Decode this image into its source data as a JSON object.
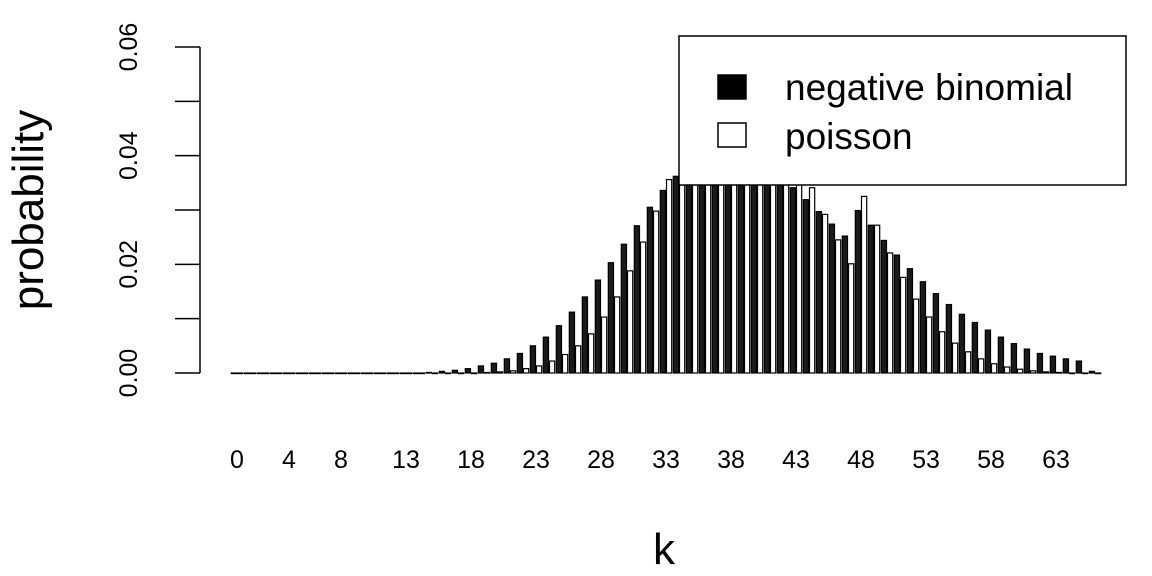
{
  "chart_data": {
    "type": "bar",
    "title": "",
    "xlabel": "k",
    "ylabel": "probability",
    "ylim": [
      0,
      0.06
    ],
    "yticks": [
      0,
      0.01,
      0.02,
      0.03,
      0.04,
      0.05,
      0.06
    ],
    "ytick_labels": [
      "0.00",
      "",
      "0.02",
      "",
      "0.04",
      "",
      "0.06"
    ],
    "x": [
      0,
      1,
      2,
      3,
      4,
      5,
      6,
      7,
      8,
      9,
      10,
      11,
      12,
      13,
      14,
      15,
      16,
      17,
      18,
      19,
      20,
      21,
      22,
      23,
      24,
      25,
      26,
      27,
      28,
      29,
      30,
      31,
      32,
      33,
      34,
      35,
      36,
      37,
      38,
      39,
      40,
      41,
      42,
      43,
      44,
      45,
      46,
      47,
      48,
      49,
      50,
      51,
      52,
      53,
      54,
      55,
      56,
      57,
      58,
      59,
      60,
      61,
      62,
      63,
      64,
      65,
      66
    ],
    "xtick_labels": [
      "0",
      "4",
      "8",
      "13",
      "18",
      "23",
      "28",
      "33",
      "38",
      "43",
      "48",
      "53",
      "58",
      "63"
    ],
    "xtick_positions": [
      0,
      4,
      8,
      13,
      18,
      23,
      28,
      33,
      38,
      43,
      48,
      53,
      58,
      63
    ],
    "grid": false,
    "legend_position": "top-right",
    "legend": [
      {
        "label": "negative binomial",
        "fill": "#000000"
      },
      {
        "label": "poisson",
        "fill": "#ffffff"
      }
    ],
    "series": [
      {
        "name": "negative binomial",
        "fill": "#1a1a1a",
        "values": [
          0,
          0,
          0,
          0,
          0,
          0,
          0,
          0,
          0,
          0,
          0,
          0,
          0,
          0,
          0,
          0.0001,
          0.0003,
          0.0005,
          0.0008,
          0.0013,
          0.0018,
          0.0026,
          0.0036,
          0.005,
          0.0066,
          0.0087,
          0.0112,
          0.014,
          0.0171,
          0.0203,
          0.0237,
          0.0271,
          0.0305,
          0.0336,
          0.0362,
          0.0384,
          0.0399,
          0.0408,
          0.041,
          0.0406,
          0.0396,
          0.0381,
          0.0362,
          0.0341,
          0.0319,
          0.0297,
          0.0274,
          0.0252,
          0.0299,
          0.0272,
          0.0244,
          0.0217,
          0.0192,
          0.0168,
          0.0146,
          0.0126,
          0.0108,
          0.0093,
          0.0079,
          0.0066,
          0.0054,
          0.0044,
          0.0036,
          0.0031,
          0.0026,
          0.0022,
          0.0003
        ]
      },
      {
        "name": "poisson",
        "fill": "#ffffff",
        "values": [
          0,
          0,
          0,
          0,
          0,
          0,
          0,
          0,
          0,
          0,
          0,
          0,
          0,
          0,
          0,
          0,
          0,
          0,
          0,
          0.0001,
          0.0002,
          0.0004,
          0.0008,
          0.0013,
          0.0022,
          0.0034,
          0.005,
          0.0072,
          0.0103,
          0.014,
          0.0188,
          0.0241,
          0.0298,
          0.0356,
          0.0411,
          0.0456,
          0.0493,
          0.0517,
          0.0527,
          0.0522,
          0.0504,
          0.0473,
          0.0434,
          0.0389,
          0.0341,
          0.0292,
          0.0245,
          0.0201,
          0.0325,
          0.0272,
          0.0221,
          0.0176,
          0.0136,
          0.0103,
          0.0076,
          0.0055,
          0.0039,
          0.0026,
          0.0017,
          0.0011,
          0.0007,
          0.0004,
          0.0002,
          0.0001,
          0,
          0,
          0
        ]
      }
    ]
  }
}
